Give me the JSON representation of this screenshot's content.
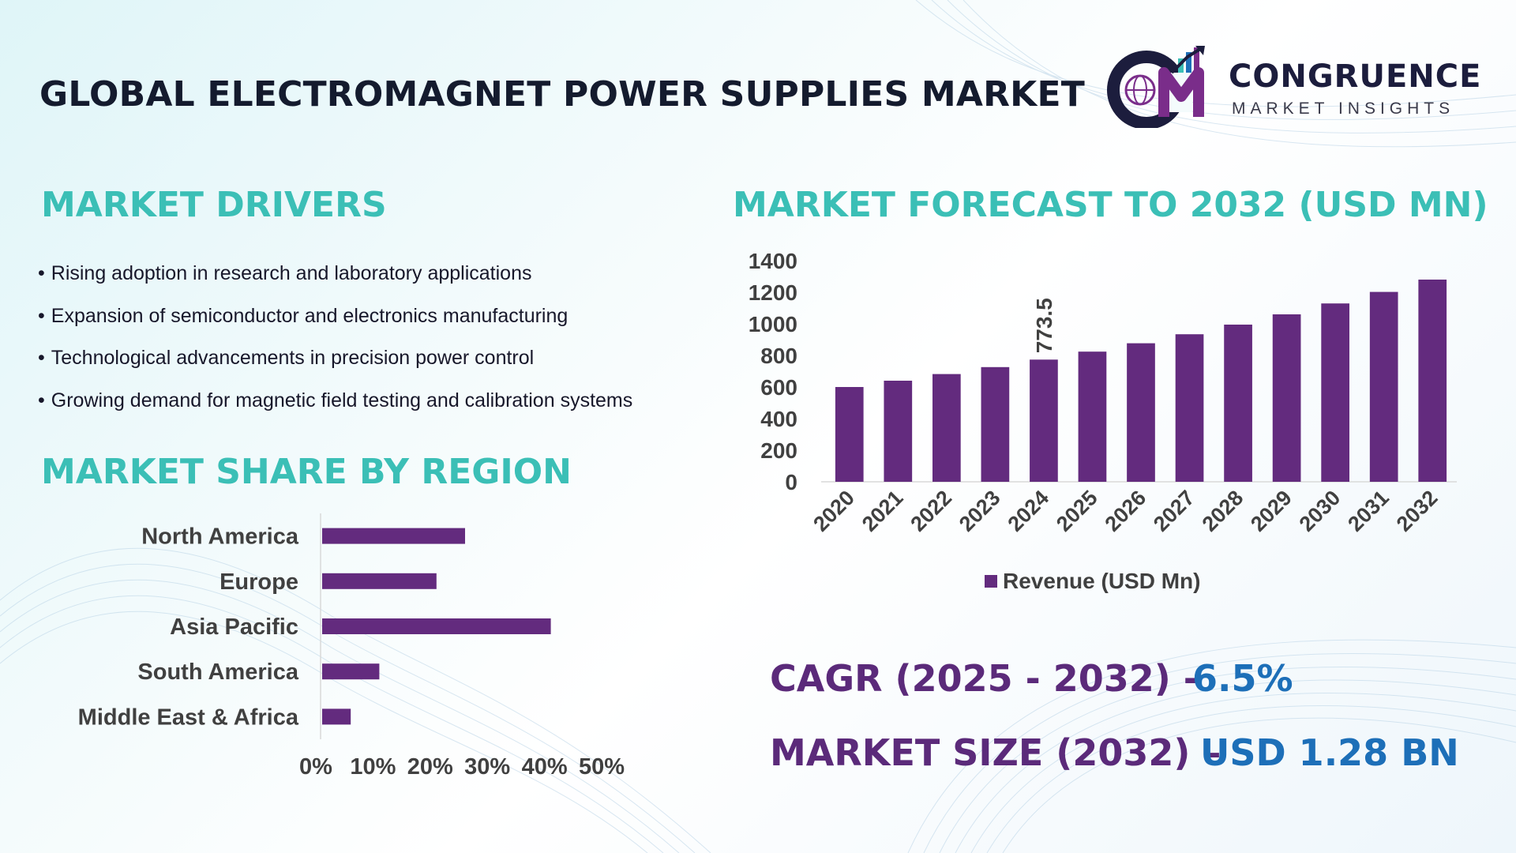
{
  "title": "GLOBAL ELECTROMAGNET POWER SUPPLIES MARKET",
  "logo": {
    "name": "CONGRUENCE",
    "subtitle": "MARKET INSIGHTS",
    "icon": "globe-chart-logo-icon",
    "colors": {
      "primary": "#1c1d3d",
      "accent": "#7a2d8a"
    }
  },
  "drivers": {
    "title": "MARKET DRIVERS",
    "items": [
      "Rising adoption in research and laboratory applications",
      "Expansion of semiconductor and electronics manufacturing",
      "Technological advancements in precision power control",
      "Growing demand for magnetic field testing and calibration systems"
    ]
  },
  "forecast": {
    "title": "MARKET FORECAST TO 2032 (USD MN)"
  },
  "region": {
    "title": "MARKET SHARE BY REGION"
  },
  "cagr": {
    "label": "CAGR (2025 - 2032) -",
    "value": "6.5%"
  },
  "market_size": {
    "label": "MARKET SIZE (2032) –",
    "value": "USD 1.28 BN"
  },
  "colors": {
    "teal": "#3bbfb6",
    "purple": "#632b7e",
    "blue": "#1d6fb8",
    "dark_purple": "#5b2a7a"
  },
  "chart_data": [
    {
      "type": "bar",
      "title": "MARKET FORECAST TO 2032 (USD MN)",
      "categories": [
        "2020",
        "2021",
        "2022",
        "2023",
        "2024",
        "2025",
        "2026",
        "2027",
        "2028",
        "2029",
        "2030",
        "2031",
        "2032"
      ],
      "series": [
        {
          "name": "Revenue (USD Mn)",
          "values": [
            600,
            640,
            682,
            726,
            773.5,
            824,
            877,
            934,
            995,
            1060,
            1129,
            1202,
            1280
          ]
        }
      ],
      "data_labels": [
        {
          "category": "2024",
          "label": "773.5"
        }
      ],
      "yticks": [
        "0",
        "200",
        "400",
        "600",
        "800",
        "1000",
        "1200",
        "1400"
      ],
      "ylim": [
        0,
        1400
      ],
      "grid": false,
      "legend": "bottom",
      "xlabel": "",
      "ylabel": ""
    },
    {
      "type": "bar",
      "orientation": "horizontal",
      "title": "MARKET SHARE BY REGION",
      "categories": [
        "North America",
        "Europe",
        "Asia Pacific",
        "South America",
        "Middle East & Africa"
      ],
      "values": [
        25,
        20,
        40,
        10,
        5
      ],
      "xticks": [
        "0%",
        "10%",
        "20%",
        "30%",
        "40%",
        "50%"
      ],
      "xlim": [
        0,
        50
      ],
      "grid": false,
      "xlabel": "",
      "ylabel": ""
    }
  ]
}
